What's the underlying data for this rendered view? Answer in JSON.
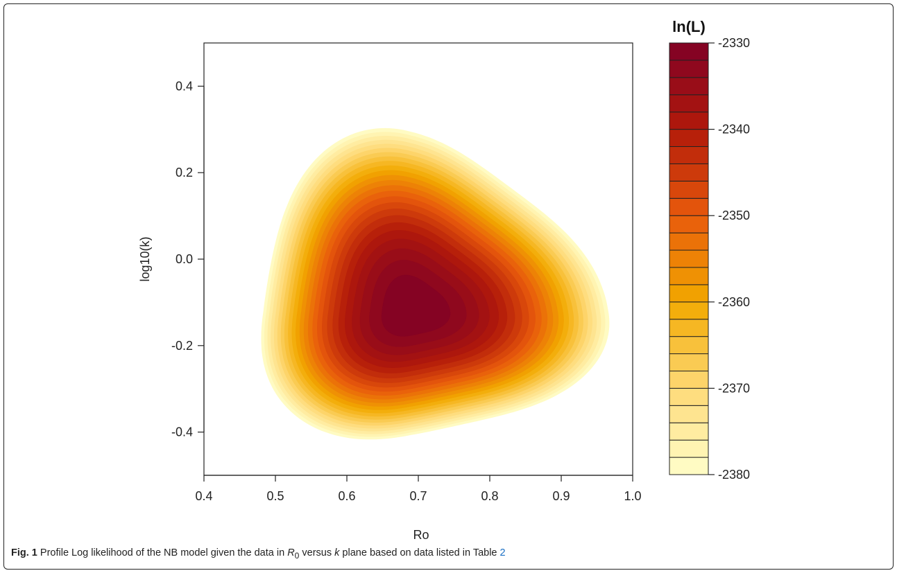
{
  "chart_data": {
    "type": "heatmap",
    "xlabel": "Ro",
    "ylabel": "log10(k)",
    "xlim": [
      0.4,
      1.0
    ],
    "ylim": [
      -0.5,
      0.5
    ],
    "xticks": [
      0.4,
      0.5,
      0.6,
      0.7,
      0.8,
      0.9,
      1.0
    ],
    "xtick_labels": [
      "0.4",
      "0.5",
      "0.6",
      "0.7",
      "0.8",
      "0.9",
      "1.0"
    ],
    "yticks": [
      -0.4,
      -0.2,
      0.0,
      0.2,
      0.4
    ],
    "ytick_labels": [
      "-0.4",
      "-0.2",
      "0.0",
      "0.2",
      "0.4"
    ],
    "maximum": {
      "Ro": 0.69,
      "log10k": -0.12,
      "lnL": -2330
    },
    "legend": {
      "title": "ln(L)",
      "range": [
        -2380,
        -2330
      ],
      "ticks": [
        -2380,
        -2370,
        -2360,
        -2350,
        -2340,
        -2330
      ],
      "tick_labels": [
        "-2380",
        "-2370",
        "-2360",
        "-2350",
        "-2340",
        "-2330"
      ],
      "levels": 25,
      "colors_low_to_high": [
        "#ffffcc",
        "#fed976",
        "#f2a900",
        "#e85a0c",
        "#b21a0a",
        "#800026"
      ]
    },
    "colors": {
      "outside": "#ffffff"
    }
  },
  "caption": {
    "label": "Fig. 1",
    "text_before": " Profile Log likelihood of the NB model given the data in ",
    "r_symbol": "R",
    "r_subscript": "0",
    "text_middle": " versus ",
    "k_symbol": "k",
    "text_after": " plane based on data listed in Table ",
    "table_ref": "2"
  }
}
